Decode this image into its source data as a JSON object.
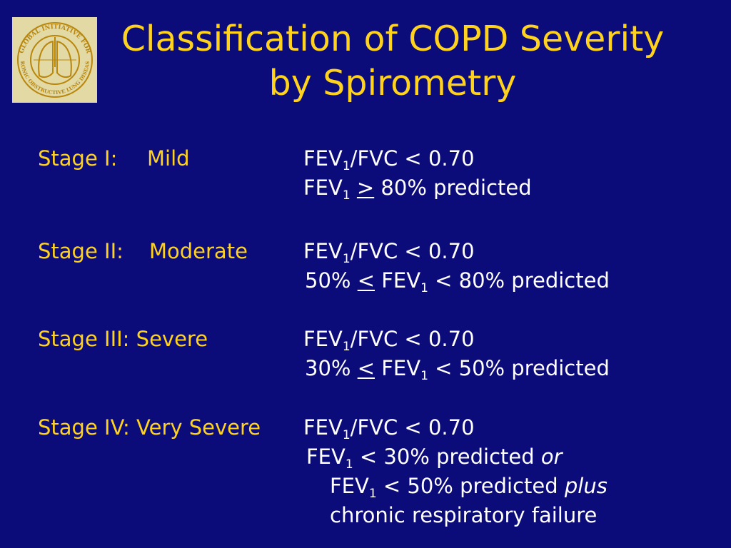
{
  "logo": {
    "ring_text_top": "GLOBAL INITIATIVE FOR",
    "ring_text_bottom": "CHRONIC OBSTRUCTIVE LUNG DISEASE™",
    "colors": {
      "background": "#e2d9a4",
      "ink": "#b8860b"
    }
  },
  "title": {
    "line1": "Classification of COPD Severity",
    "line2": "by Spirometry"
  },
  "stages": [
    {
      "label": "Stage I:",
      "severity": "Mild",
      "lines": [
        [
          "FEV",
          "1",
          "/FVC < 0.70"
        ],
        [
          "FEV",
          "1",
          " ",
          ">",
          " 80% predicted"
        ]
      ]
    },
    {
      "label": "Stage II:",
      "severity": "Moderate",
      "lines": [
        [
          "FEV",
          "1",
          "/FVC < 0.70"
        ],
        [
          "50% ",
          "<",
          " FEV",
          "1",
          " < 80% predicted"
        ]
      ]
    },
    {
      "label": "Stage III:",
      "severity": "Severe",
      "lines": [
        [
          "FEV",
          "1",
          "/FVC < 0.70"
        ],
        [
          "30% ",
          "<",
          " FEV",
          "1",
          " < 50% predicted"
        ]
      ]
    },
    {
      "label": "Stage IV:",
      "severity": "Very Severe",
      "lines": [
        [
          "FEV",
          "1",
          "/FVC < 0.70"
        ],
        [
          "FEV",
          "1",
          " < 30% predicted ",
          "or"
        ],
        [
          "FEV",
          "1",
          " < 50% predicted ",
          "plus"
        ],
        [
          "chronic respiratory failure"
        ]
      ]
    }
  ],
  "colors": {
    "background": "#0b0b7a",
    "title": "#ffd21e",
    "stage_label": "#ffd21e",
    "criteria": "#ffffff"
  }
}
